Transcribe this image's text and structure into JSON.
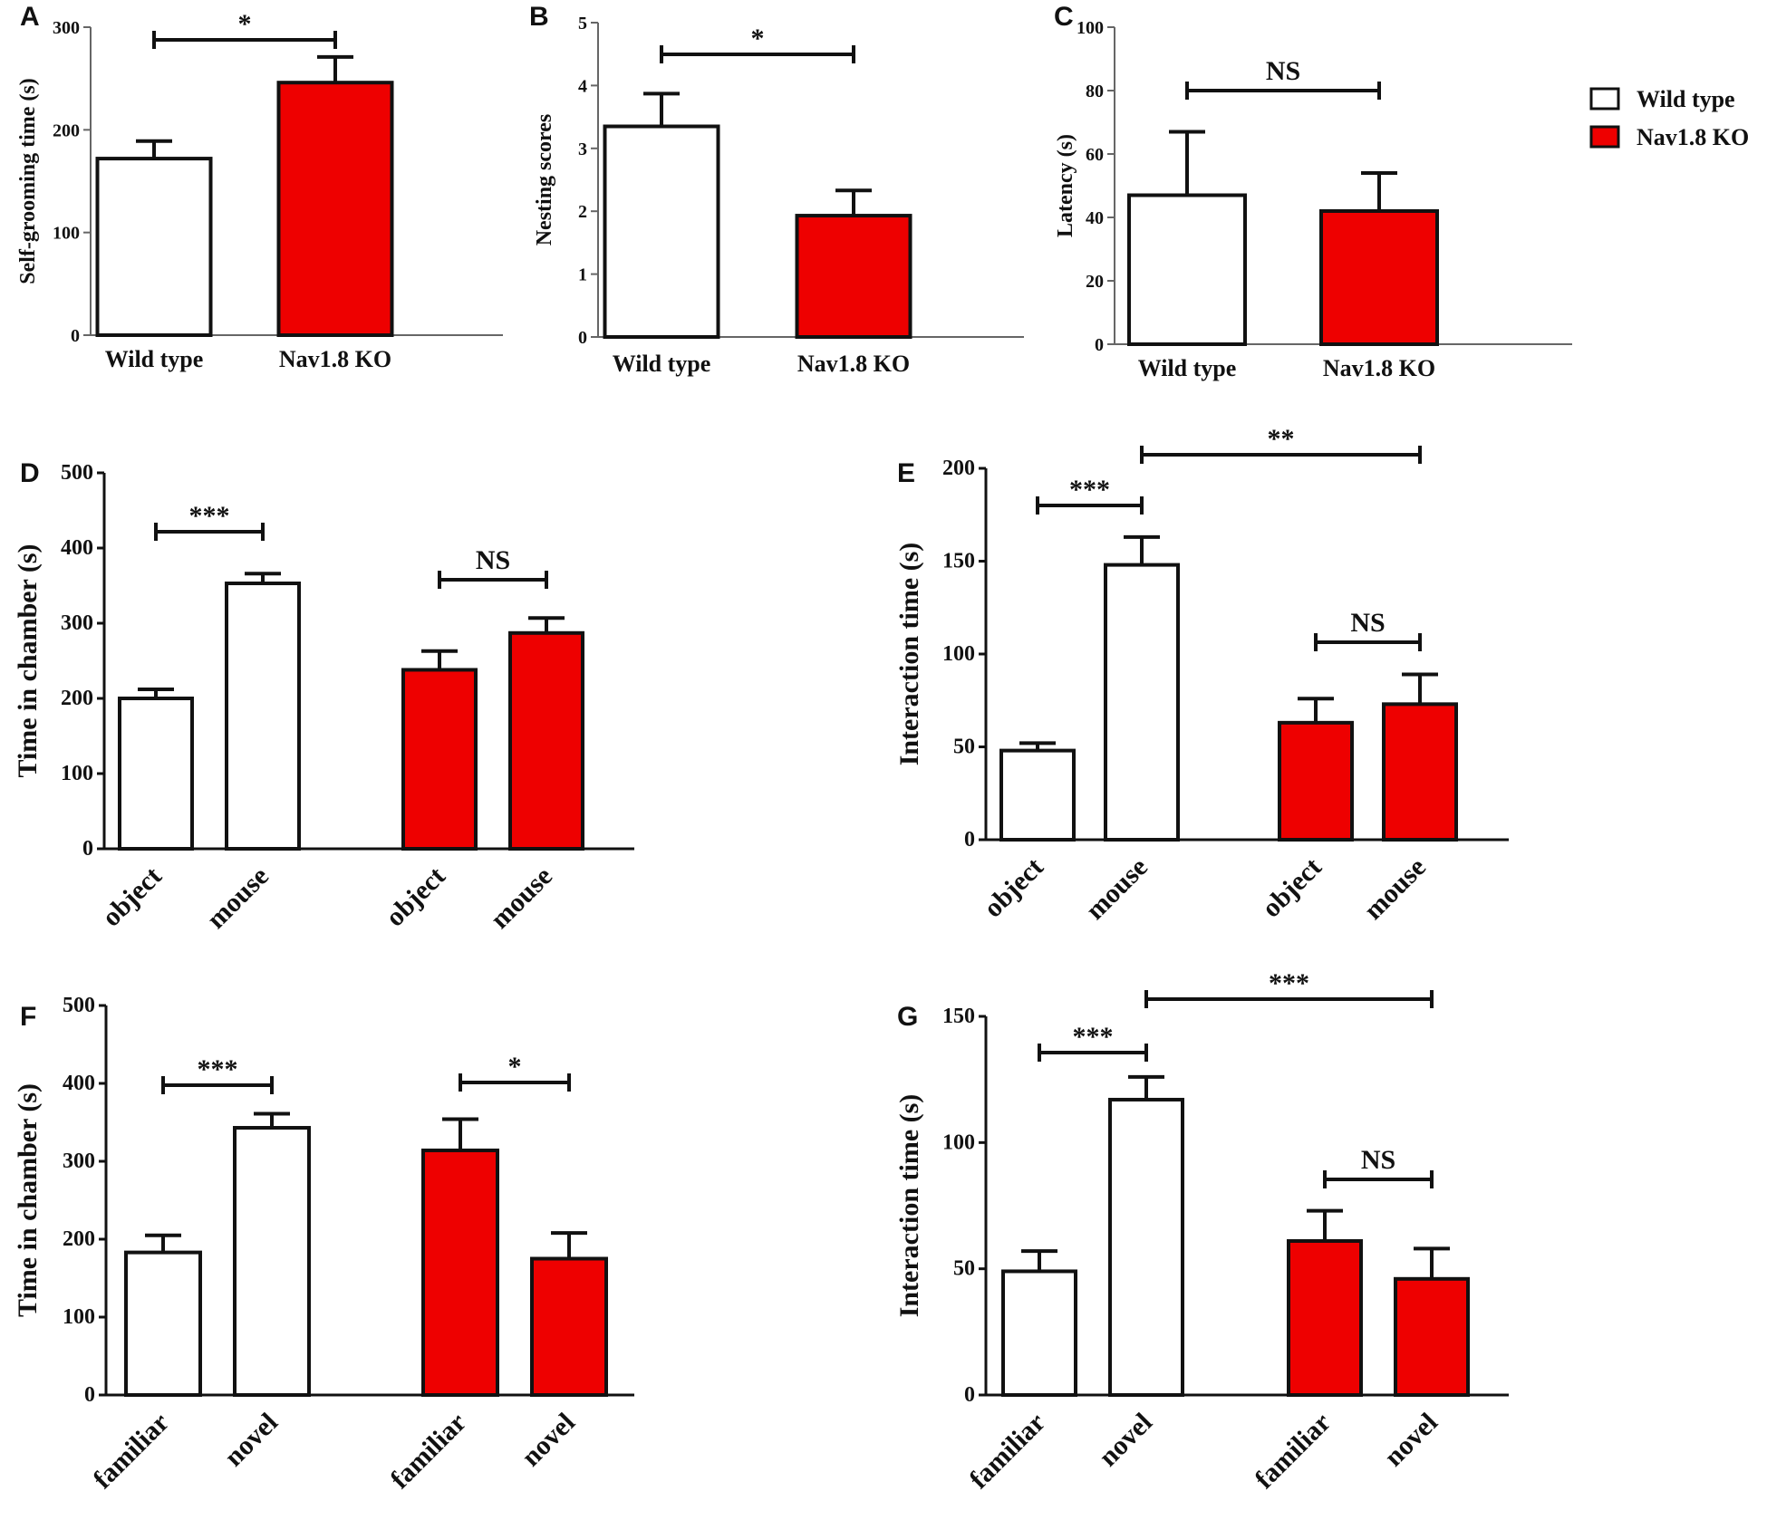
{
  "legend": {
    "entries": [
      {
        "label": "Wild type",
        "color": "#ffffff"
      },
      {
        "label": "Nav1.8 KO",
        "color": "#ee0000"
      }
    ]
  },
  "colors": {
    "wild_type": "#ffffff",
    "ko": "#ee0000",
    "stroke": "#111111"
  },
  "chart_data": [
    {
      "panel": "A",
      "type": "bar",
      "ylabel": "Self-grooming time (s)",
      "ylim": [
        0,
        300
      ],
      "yticks": [
        0,
        100,
        200,
        300
      ],
      "categories": [
        "Wild type",
        "Nav1.8 KO"
      ],
      "values": [
        172,
        246
      ],
      "errors": [
        17,
        25
      ],
      "groups": [
        "wt",
        "ko"
      ],
      "significance": [
        {
          "from": 0,
          "to": 1,
          "label": "*"
        }
      ]
    },
    {
      "panel": "B",
      "type": "bar",
      "ylabel": "Nesting scores",
      "ylim": [
        0,
        5
      ],
      "yticks": [
        0,
        1,
        2,
        3,
        4,
        5
      ],
      "categories": [
        "Wild type",
        "Nav1.8 KO"
      ],
      "values": [
        3.35,
        1.93
      ],
      "errors": [
        0.52,
        0.4
      ],
      "groups": [
        "wt",
        "ko"
      ],
      "significance": [
        {
          "from": 0,
          "to": 1,
          "label": "*"
        }
      ]
    },
    {
      "panel": "C",
      "type": "bar",
      "ylabel": "Latency (s)",
      "ylim": [
        0,
        100
      ],
      "yticks": [
        0,
        20,
        40,
        60,
        80,
        100
      ],
      "categories": [
        "Wild type",
        "Nav1.8 KO"
      ],
      "values": [
        47,
        42
      ],
      "errors": [
        20,
        12
      ],
      "groups": [
        "wt",
        "ko"
      ],
      "significance": [
        {
          "from": 0,
          "to": 1,
          "label": "NS"
        }
      ]
    },
    {
      "panel": "D",
      "type": "bar",
      "ylabel": "Time in chamber (s)",
      "ylim": [
        0,
        500
      ],
      "yticks": [
        0,
        100,
        200,
        300,
        400,
        500
      ],
      "categories": [
        "object",
        "mouse",
        "object",
        "mouse"
      ],
      "values": [
        200,
        353,
        238,
        287
      ],
      "errors": [
        12,
        13,
        25,
        20
      ],
      "groups": [
        "wt",
        "wt",
        "ko",
        "ko"
      ],
      "significance": [
        {
          "from": 0,
          "to": 1,
          "label": "***"
        },
        {
          "from": 2,
          "to": 3,
          "label": "NS"
        }
      ]
    },
    {
      "panel": "E",
      "type": "bar",
      "ylabel": "Interaction time (s)",
      "ylim": [
        0,
        200
      ],
      "yticks": [
        0,
        50,
        100,
        150,
        200
      ],
      "categories": [
        "object",
        "mouse",
        "object",
        "mouse"
      ],
      "values": [
        48,
        148,
        63,
        73
      ],
      "errors": [
        4,
        15,
        13,
        16
      ],
      "groups": [
        "wt",
        "wt",
        "ko",
        "ko"
      ],
      "significance": [
        {
          "from": 0,
          "to": 1,
          "label": "***"
        },
        {
          "from": 1,
          "to": 3,
          "label": "**"
        },
        {
          "from": 2,
          "to": 3,
          "label": "NS"
        }
      ]
    },
    {
      "panel": "F",
      "type": "bar",
      "ylabel": "Time in chamber (s)",
      "ylim": [
        0,
        500
      ],
      "yticks": [
        0,
        100,
        200,
        300,
        400,
        500
      ],
      "categories": [
        "familiar",
        "novel",
        "familiar",
        "novel"
      ],
      "values": [
        183,
        343,
        314,
        175
      ],
      "errors": [
        22,
        18,
        40,
        33
      ],
      "groups": [
        "wt",
        "wt",
        "ko",
        "ko"
      ],
      "significance": [
        {
          "from": 0,
          "to": 1,
          "label": "***"
        },
        {
          "from": 2,
          "to": 3,
          "label": "*"
        }
      ]
    },
    {
      "panel": "G",
      "type": "bar",
      "ylabel": "Interaction time (s)",
      "ylim": [
        0,
        150
      ],
      "yticks": [
        0,
        50,
        100,
        150
      ],
      "categories": [
        "familiar",
        "novel",
        "familiar",
        "novel"
      ],
      "values": [
        49,
        117,
        61,
        46
      ],
      "errors": [
        8,
        9,
        12,
        12
      ],
      "groups": [
        "wt",
        "wt",
        "ko",
        "ko"
      ],
      "significance": [
        {
          "from": 0,
          "to": 1,
          "label": "***"
        },
        {
          "from": 1,
          "to": 3,
          "label": "***"
        },
        {
          "from": 2,
          "to": 3,
          "label": "NS"
        }
      ]
    }
  ]
}
